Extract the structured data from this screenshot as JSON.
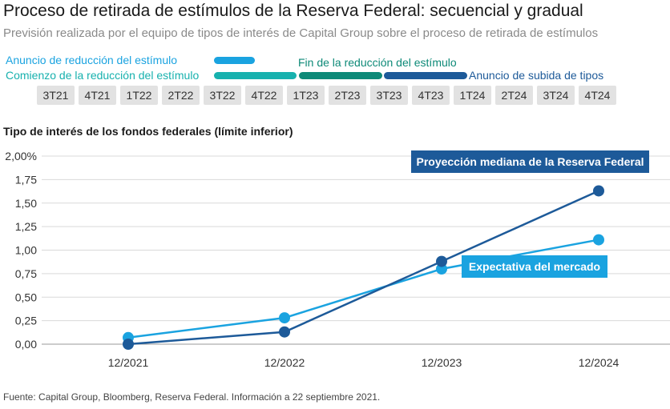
{
  "header": {
    "title": "Proceso de retirada de estímulos de la Reserva Federal: secuencial y gradual",
    "subtitle": "Previsión realizada por el equipo de tipos de interés de Capital Group sobre el proceso de retirada de estímulos"
  },
  "timeline": {
    "labels": {
      "announce": "Anuncio de reducción del estímulo",
      "start": "Comienzo de la reducción del estímulo",
      "end": "Fin de la reducción del estímulo",
      "hike": "Anuncio de subida de tipos"
    },
    "colors": {
      "announce": "#1aa3e0",
      "start": "#17b1ae",
      "end": "#0e8a78",
      "hike": "#1d5a99"
    },
    "quarters": [
      "3T21",
      "4T21",
      "1T22",
      "2T22",
      "3T22",
      "4T22",
      "1T23",
      "2T23",
      "3T23",
      "4T23",
      "1T24",
      "2T24",
      "3T24",
      "4T24"
    ]
  },
  "chart_data": {
    "type": "line",
    "ylabel": "Tipo de interés de los fondos federales (límite inferior)",
    "categories": [
      "12/2021",
      "12/2022",
      "12/2023",
      "12/2024"
    ],
    "yticks": [
      "0,00",
      "0,25",
      "0,50",
      "0,75",
      "1,00",
      "1,25",
      "1,50",
      "1,75",
      "2,00%"
    ],
    "ylim": [
      0,
      2.0
    ],
    "series": [
      {
        "name": "Proyección mediana de la Reserva Federal",
        "values": [
          0.0,
          0.13,
          0.88,
          1.63
        ],
        "color": "#1d5a99"
      },
      {
        "name": "Expectativa del mercado",
        "values": [
          0.07,
          0.28,
          0.8,
          1.11
        ],
        "color": "#1aa3e0"
      }
    ]
  },
  "footer": {
    "source": "Fuente: Capital Group, Bloomberg, Reserva Federal. Información a 22 septiembre 2021."
  }
}
